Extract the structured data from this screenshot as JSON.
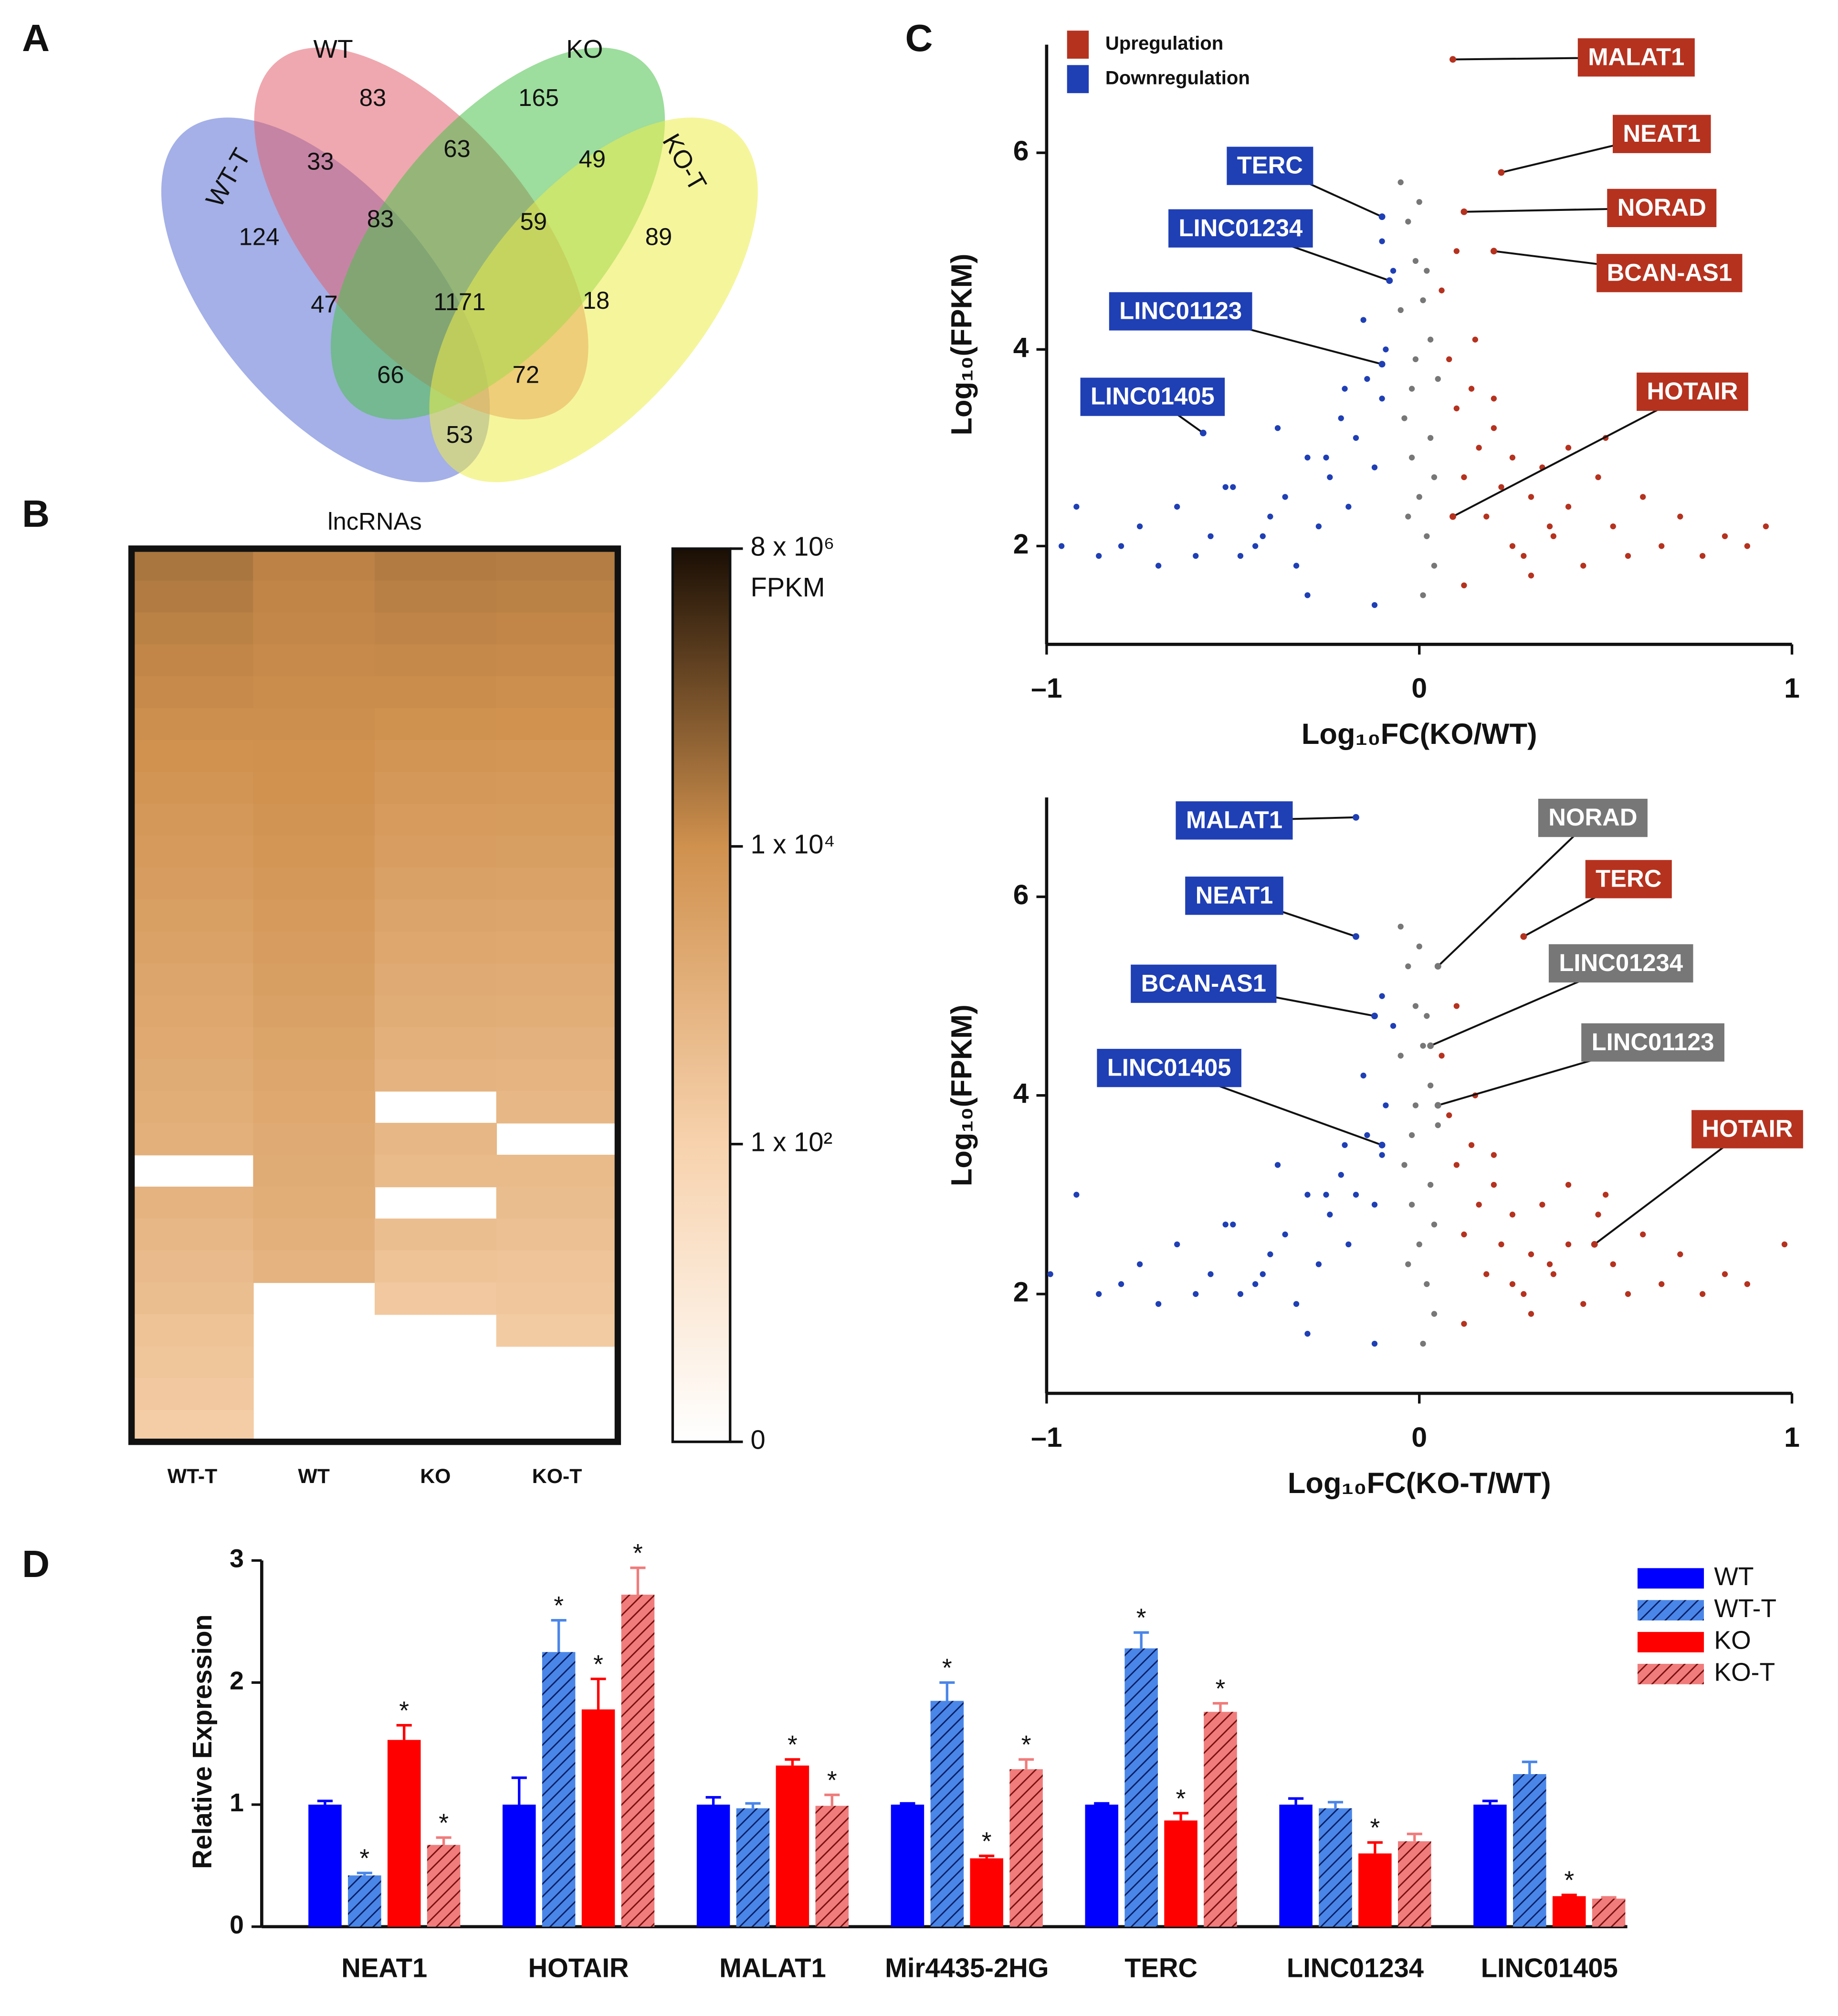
{
  "chart_data": [
    {
      "type": "venn",
      "panel": "A",
      "sets": [
        {
          "name": "WT-T",
          "color": "#5a6fd3"
        },
        {
          "name": "WT",
          "color": "#e2606e"
        },
        {
          "name": "KO",
          "color": "#4cc14c"
        },
        {
          "name": "KO-T",
          "color": "#ecec4a"
        }
      ],
      "counts": [
        124,
        83,
        165,
        89,
        33,
        63,
        49,
        83,
        59,
        47,
        1171,
        18,
        66,
        72,
        53
      ]
    },
    {
      "type": "heatmap",
      "panel": "B",
      "title": "lncRNAs",
      "columns": [
        "WT-T",
        "WT",
        "KO",
        "KO-T"
      ],
      "values": [
        [
          40000,
          30000,
          22000,
          17000,
          14000,
          11000,
          9000,
          7500,
          6000,
          5000,
          4200,
          3500,
          3000,
          2500,
          2100,
          1800,
          1500,
          1300,
          1100,
          null,
          900,
          700,
          500,
          400,
          300,
          250,
          200,
          150
        ],
        [
          20000,
          18000,
          16000,
          14000,
          12000,
          11000,
          10000,
          9000,
          8000,
          7000,
          6000,
          5200,
          4500,
          3800,
          3200,
          2700,
          2300,
          2000,
          1700,
          1500,
          1300,
          1100,
          900,
          null,
          null,
          null,
          null,
          null
        ],
        [
          30000,
          24000,
          19000,
          15000,
          12000,
          9500,
          7500,
          6000,
          4800,
          3900,
          3200,
          2600,
          2100,
          1700,
          1400,
          1100,
          900,
          null,
          700,
          550,
          null,
          400,
          300,
          200,
          null,
          null,
          null,
          null
        ],
        [
          28000,
          22000,
          17500,
          14000,
          11000,
          9000,
          7200,
          5800,
          4700,
          3800,
          3100,
          2500,
          2000,
          1600,
          1300,
          1050,
          850,
          700,
          null,
          550,
          450,
          350,
          280,
          220,
          170,
          null,
          null,
          null
        ]
      ],
      "colorbar": {
        "label": "FPKM",
        "ticks": [
          0,
          {
            "value": 100,
            "label": "1 x 10²"
          },
          {
            "value": 10000,
            "label": "1 x 10⁴"
          },
          {
            "value": 8000000,
            "label": "8 x 10⁶"
          }
        ],
        "colors": [
          "#ffffff",
          "#f7d2ad",
          "#d0914e",
          "#1a0e04"
        ]
      }
    },
    {
      "type": "scatter",
      "panel": "C",
      "xlabel": "Log₁₀FC(KO/WT)",
      "ylabel": "Log₁₀(FPKM)",
      "xlim": [
        -1,
        1
      ],
      "xticks": [
        {
          "value": -1,
          "label": "–1"
        },
        0,
        1
      ],
      "ylim": [
        1,
        7.1
      ],
      "yticks": [
        2,
        4,
        6
      ],
      "legend": "upper left",
      "series": [
        {
          "name": "Upregulation",
          "color": "#b5321f",
          "x": [
            0.06,
            0.08,
            0.1,
            0.12,
            0.14,
            0.16,
            0.18,
            0.2,
            0.22,
            0.25,
            0.28,
            0.3,
            0.33,
            0.36,
            0.4,
            0.44,
            0.48,
            0.52,
            0.56,
            0.6,
            0.65,
            0.7,
            0.76,
            0.82,
            0.88,
            0.93,
            0.1,
            0.15,
            0.2,
            0.3,
            0.12,
            0.25,
            0.4,
            0.5,
            0.35
          ],
          "values": [
            4.6,
            3.9,
            3.4,
            2.7,
            3.6,
            3.0,
            2.3,
            3.2,
            2.6,
            2.9,
            1.9,
            2.5,
            2.8,
            2.1,
            2.4,
            1.8,
            2.7,
            2.2,
            1.9,
            2.5,
            2.0,
            2.3,
            1.9,
            2.1,
            2.0,
            2.2,
            5.0,
            4.1,
            3.5,
            1.7,
            1.6,
            2.0,
            3.0,
            3.1,
            2.2
          ]
        },
        {
          "name": "Downregulation",
          "color": "#1f3fb5",
          "x": [
            -0.07,
            -0.09,
            -0.1,
            -0.12,
            -0.14,
            -0.17,
            -0.19,
            -0.21,
            -0.24,
            -0.27,
            -0.3,
            -0.33,
            -0.36,
            -0.4,
            -0.44,
            -0.48,
            -0.52,
            -0.56,
            -0.6,
            -0.65,
            -0.7,
            -0.75,
            -0.8,
            -0.86,
            -0.92,
            -0.96,
            -0.1,
            -0.15,
            -0.2,
            -0.3,
            -0.12,
            -0.25,
            -0.38,
            -0.5,
            -0.42
          ],
          "values": [
            4.8,
            4.0,
            3.5,
            2.8,
            3.7,
            3.1,
            2.4,
            3.3,
            2.7,
            2.2,
            2.9,
            1.8,
            2.5,
            2.3,
            2.0,
            1.9,
            2.6,
            2.1,
            1.9,
            2.4,
            1.8,
            2.2,
            2.0,
            1.9,
            2.4,
            2.0,
            5.1,
            4.3,
            3.6,
            1.5,
            1.4,
            2.9,
            3.2,
            2.6,
            2.1
          ]
        },
        {
          "color": "#777777",
          "x": [
            -0.05,
            -0.03,
            -0.01,
            0.01,
            0.03,
            0.05,
            -0.04,
            -0.02,
            0,
            0.02,
            0.04,
            -0.05,
            -0.01,
            0.03,
            0,
            -0.03,
            0.02,
            -0.02,
            0.01,
            0.04
          ],
          "values": [
            5.7,
            5.3,
            4.9,
            4.5,
            4.1,
            3.7,
            3.3,
            2.9,
            2.5,
            2.1,
            1.8,
            4.4,
            3.9,
            3.1,
            5.5,
            2.3,
            4.8,
            3.6,
            1.5,
            2.7
          ]
        }
      ],
      "annotations": [
        {
          "text": "MALAT1",
          "x": 0.09,
          "y": 6.95,
          "color": "#b5321f"
        },
        {
          "text": "NEAT1",
          "x": 0.22,
          "y": 5.8,
          "color": "#b5321f"
        },
        {
          "text": "NORAD",
          "x": 0.12,
          "y": 5.4,
          "color": "#b5321f"
        },
        {
          "text": "BCAN-AS1",
          "x": 0.2,
          "y": 5.0,
          "color": "#b5321f"
        },
        {
          "text": "HOTAIR",
          "x": 0.09,
          "y": 2.3,
          "color": "#b5321f"
        },
        {
          "text": "TERC",
          "x": -0.1,
          "y": 5.35,
          "color": "#1f3fb5"
        },
        {
          "text": "LINC01234",
          "x": -0.08,
          "y": 4.7,
          "color": "#1f3fb5"
        },
        {
          "text": "LINC01123",
          "x": -0.1,
          "y": 3.85,
          "color": "#1f3fb5"
        },
        {
          "text": "LINC01405",
          "x": -0.58,
          "y": 3.15,
          "color": "#1f3fb5"
        }
      ]
    },
    {
      "type": "scatter",
      "xlabel": "Log₁₀FC(KO-T/WT)",
      "ylabel": "Log₁₀(FPKM)",
      "xlim": [
        -1,
        1
      ],
      "xticks": [
        {
          "value": -1,
          "label": "–1"
        },
        0,
        1
      ],
      "ylim": [
        1,
        7
      ],
      "yticks": [
        2,
        4,
        6
      ],
      "series": [
        {
          "color": "#b5321f",
          "x": [
            0.06,
            0.08,
            0.1,
            0.12,
            0.14,
            0.16,
            0.18,
            0.2,
            0.22,
            0.25,
            0.28,
            0.3,
            0.33,
            0.36,
            0.4,
            0.44,
            0.48,
            0.52,
            0.56,
            0.6,
            0.65,
            0.7,
            0.76,
            0.82,
            0.88,
            0.98,
            0.1,
            0.15,
            0.2,
            0.3,
            0.12,
            0.25,
            0.4,
            0.5,
            0.35
          ],
          "values": [
            4.4,
            3.8,
            3.3,
            2.6,
            3.5,
            2.9,
            2.2,
            3.1,
            2.5,
            2.8,
            2.0,
            2.4,
            2.9,
            2.2,
            2.5,
            1.9,
            2.8,
            2.3,
            2.0,
            2.6,
            2.1,
            2.4,
            2.0,
            2.2,
            2.1,
            2.5,
            4.9,
            4.0,
            3.4,
            1.8,
            1.7,
            2.1,
            3.1,
            3.0,
            2.3
          ]
        },
        {
          "color": "#1f3fb5",
          "x": [
            -0.07,
            -0.09,
            -0.1,
            -0.12,
            -0.14,
            -0.17,
            -0.19,
            -0.21,
            -0.24,
            -0.27,
            -0.3,
            -0.33,
            -0.36,
            -0.4,
            -0.44,
            -0.48,
            -0.52,
            -0.56,
            -0.6,
            -0.65,
            -0.7,
            -0.75,
            -0.8,
            -0.86,
            -0.92,
            -0.99,
            -0.1,
            -0.15,
            -0.2,
            -0.3,
            -0.12,
            -0.25,
            -0.38,
            -0.5,
            -0.42
          ],
          "values": [
            4.7,
            3.9,
            3.4,
            2.9,
            3.6,
            3.0,
            2.5,
            3.2,
            2.8,
            2.3,
            3.0,
            1.9,
            2.6,
            2.4,
            2.1,
            2.0,
            2.7,
            2.2,
            2.0,
            2.5,
            1.9,
            2.3,
            2.1,
            2.0,
            3.0,
            2.2,
            5.0,
            4.2,
            3.5,
            1.6,
            1.5,
            3.0,
            3.3,
            2.7,
            2.2
          ]
        },
        {
          "color": "#777777",
          "x": [
            -0.05,
            -0.03,
            -0.01,
            0.01,
            0.03,
            0.05,
            -0.04,
            -0.02,
            0,
            0.02,
            0.04,
            -0.05,
            -0.01,
            0.03,
            0,
            -0.03,
            0.02,
            -0.02,
            0.01,
            0.04
          ],
          "values": [
            5.7,
            5.3,
            4.9,
            4.5,
            4.1,
            3.7,
            3.3,
            2.9,
            2.5,
            2.1,
            1.8,
            4.4,
            3.9,
            3.1,
            5.5,
            2.3,
            4.8,
            3.6,
            1.5,
            2.7
          ]
        }
      ],
      "annotations": [
        {
          "text": "MALAT1",
          "x": -0.17,
          "y": 6.8,
          "color": "#1f3fb5"
        },
        {
          "text": "NEAT1",
          "x": -0.17,
          "y": 5.6,
          "color": "#1f3fb5"
        },
        {
          "text": "BCAN-AS1",
          "x": -0.12,
          "y": 4.8,
          "color": "#1f3fb5"
        },
        {
          "text": "LINC01405",
          "x": -0.1,
          "y": 3.5,
          "color": "#1f3fb5"
        },
        {
          "text": "NORAD",
          "x": 0.05,
          "y": 5.3,
          "color": "#777777"
        },
        {
          "text": "TERC",
          "x": 0.28,
          "y": 5.6,
          "color": "#b5321f"
        },
        {
          "text": "LINC01234",
          "x": 0.03,
          "y": 4.5,
          "color": "#777777"
        },
        {
          "text": "LINC01123",
          "x": 0.05,
          "y": 3.9,
          "color": "#777777"
        },
        {
          "text": "HOTAIR",
          "x": 0.47,
          "y": 2.5,
          "color": "#b5321f"
        }
      ]
    },
    {
      "type": "bar",
      "panel": "D",
      "ylabel": "Relative Expression",
      "categories": [
        "NEAT1",
        "HOTAIR",
        "MALAT1",
        "Mir4435-2HG",
        "TERC",
        "LINC01234",
        "LINC01405"
      ],
      "ylim": [
        0,
        3
      ],
      "yticks": [
        0,
        1,
        2,
        3
      ],
      "legend": "upper right",
      "series": [
        {
          "name": "WT",
          "color": "#0000ff",
          "hatch": false,
          "values": [
            1.0,
            1.0,
            1.0,
            1.0,
            1.0,
            1.0,
            1.0
          ],
          "errors": [
            0.03,
            0.22,
            0.06,
            0.01,
            0.01,
            0.05,
            0.03
          ],
          "annotations": [
            null,
            null,
            null,
            null,
            null,
            null,
            null
          ]
        },
        {
          "name": "WT-T",
          "color": "#4a86e8",
          "hatch": true,
          "values": [
            0.42,
            2.25,
            0.97,
            1.85,
            2.28,
            0.97,
            1.25
          ],
          "errors": [
            0.02,
            0.26,
            0.04,
            0.15,
            0.13,
            0.05,
            0.1
          ],
          "annotations": [
            "*",
            "*",
            null,
            "*",
            "*",
            null,
            null
          ]
        },
        {
          "name": "KO",
          "color": "#ff0000",
          "hatch": false,
          "values": [
            1.53,
            1.78,
            1.32,
            0.56,
            0.87,
            0.6,
            0.25
          ],
          "errors": [
            0.12,
            0.25,
            0.05,
            0.02,
            0.06,
            0.09,
            0.01
          ],
          "annotations": [
            "*",
            "*",
            "*",
            "*",
            "*",
            "*",
            "*"
          ]
        },
        {
          "name": "KO-T",
          "color": "#f07c7c",
          "hatch": true,
          "values": [
            0.67,
            2.72,
            0.99,
            1.29,
            1.76,
            0.7,
            0.23
          ],
          "errors": [
            0.06,
            0.22,
            0.09,
            0.08,
            0.07,
            0.06,
            0.01
          ],
          "annotations": [
            "*",
            "*",
            "*",
            "*",
            "*",
            null,
            null
          ]
        }
      ]
    }
  ]
}
